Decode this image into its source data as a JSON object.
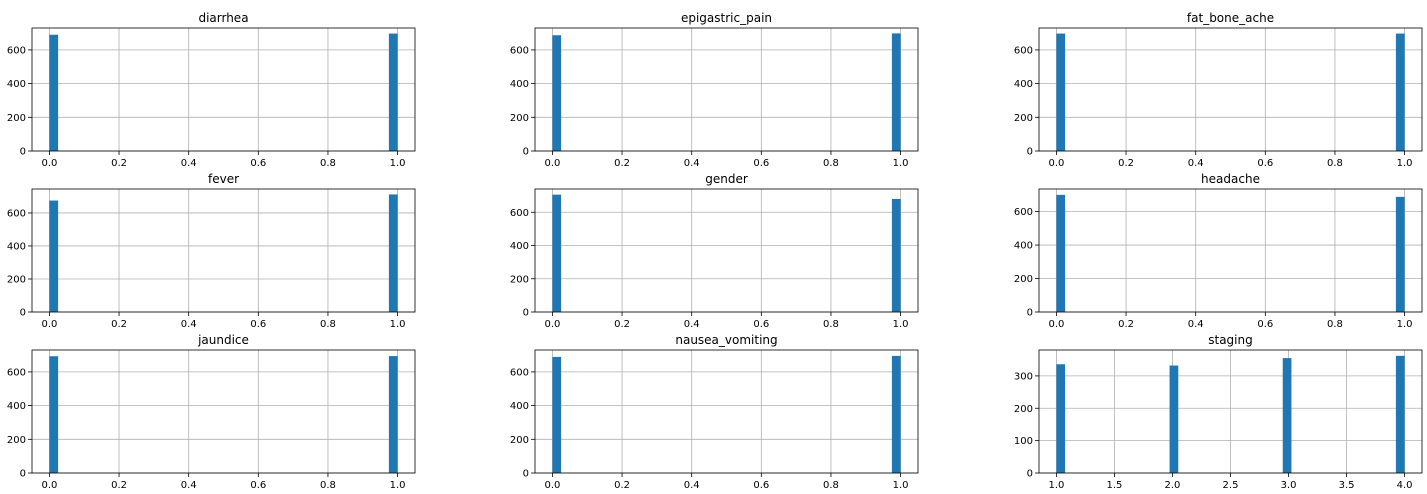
{
  "chart_data": [
    {
      "type": "bar",
      "title": "diarrhea",
      "xlabel": "",
      "ylabel": "",
      "xlim": [
        -0.05,
        1.05
      ],
      "ylim": [
        0,
        730
      ],
      "xticks": [
        0.0,
        0.2,
        0.4,
        0.6,
        0.8,
        1.0
      ],
      "xtick_labels": [
        "0.0",
        "0.2",
        "0.4",
        "0.6",
        "0.8",
        "1.0"
      ],
      "yticks": [
        0,
        200,
        400,
        600
      ],
      "ytick_labels": [
        "0",
        "200",
        "400",
        "600"
      ],
      "grid": true,
      "bins": [
        {
          "x0": 0.0,
          "x1": 0.025,
          "count": 690
        },
        {
          "x0": 0.975,
          "x1": 1.0,
          "count": 697
        }
      ]
    },
    {
      "type": "bar",
      "title": "epigastric_pain",
      "xlabel": "",
      "ylabel": "",
      "xlim": [
        -0.05,
        1.05
      ],
      "ylim": [
        0,
        730
      ],
      "xticks": [
        0.0,
        0.2,
        0.4,
        0.6,
        0.8,
        1.0
      ],
      "xtick_labels": [
        "0.0",
        "0.2",
        "0.4",
        "0.6",
        "0.8",
        "1.0"
      ],
      "yticks": [
        0,
        200,
        400,
        600
      ],
      "ytick_labels": [
        "0",
        "200",
        "400",
        "600"
      ],
      "grid": true,
      "bins": [
        {
          "x0": 0.0,
          "x1": 0.025,
          "count": 687
        },
        {
          "x0": 0.975,
          "x1": 1.0,
          "count": 698
        }
      ]
    },
    {
      "type": "bar",
      "title": "fat_bone_ache",
      "xlabel": "",
      "ylabel": "",
      "xlim": [
        -0.05,
        1.05
      ],
      "ylim": [
        0,
        730
      ],
      "xticks": [
        0.0,
        0.2,
        0.4,
        0.6,
        0.8,
        1.0
      ],
      "xtick_labels": [
        "0.0",
        "0.2",
        "0.4",
        "0.6",
        "0.8",
        "1.0"
      ],
      "yticks": [
        0,
        200,
        400,
        600
      ],
      "ytick_labels": [
        "0",
        "200",
        "400",
        "600"
      ],
      "grid": true,
      "bins": [
        {
          "x0": 0.0,
          "x1": 0.025,
          "count": 697
        },
        {
          "x0": 0.975,
          "x1": 1.0,
          "count": 697
        }
      ]
    },
    {
      "type": "bar",
      "title": "fever",
      "xlabel": "",
      "ylabel": "",
      "xlim": [
        -0.05,
        1.05
      ],
      "ylim": [
        0,
        745
      ],
      "xticks": [
        0.0,
        0.2,
        0.4,
        0.6,
        0.8,
        1.0
      ],
      "xtick_labels": [
        "0.0",
        "0.2",
        "0.4",
        "0.6",
        "0.8",
        "1.0"
      ],
      "yticks": [
        0,
        200,
        400,
        600
      ],
      "ytick_labels": [
        "0",
        "200",
        "400",
        "600"
      ],
      "grid": true,
      "bins": [
        {
          "x0": 0.0,
          "x1": 0.025,
          "count": 675
        },
        {
          "x0": 0.975,
          "x1": 1.0,
          "count": 712
        }
      ]
    },
    {
      "type": "bar",
      "title": "gender",
      "xlabel": "",
      "ylabel": "",
      "xlim": [
        -0.05,
        1.05
      ],
      "ylim": [
        0,
        740
      ],
      "xticks": [
        0.0,
        0.2,
        0.4,
        0.6,
        0.8,
        1.0
      ],
      "xtick_labels": [
        "0.0",
        "0.2",
        "0.4",
        "0.6",
        "0.8",
        "1.0"
      ],
      "yticks": [
        0,
        200,
        400,
        600
      ],
      "ytick_labels": [
        "0",
        "200",
        "400",
        "600"
      ],
      "grid": true,
      "bins": [
        {
          "x0": 0.0,
          "x1": 0.025,
          "count": 706
        },
        {
          "x0": 0.975,
          "x1": 1.0,
          "count": 680
        }
      ]
    },
    {
      "type": "bar",
      "title": "headache",
      "xlabel": "",
      "ylabel": "",
      "xlim": [
        -0.05,
        1.05
      ],
      "ylim": [
        0,
        735
      ],
      "xticks": [
        0.0,
        0.2,
        0.4,
        0.6,
        0.8,
        1.0
      ],
      "xtick_labels": [
        "0.0",
        "0.2",
        "0.4",
        "0.6",
        "0.8",
        "1.0"
      ],
      "yticks": [
        0,
        200,
        400,
        600
      ],
      "ytick_labels": [
        "0",
        "200",
        "400",
        "600"
      ],
      "grid": true,
      "bins": [
        {
          "x0": 0.0,
          "x1": 0.025,
          "count": 700
        },
        {
          "x0": 0.975,
          "x1": 1.0,
          "count": 688
        }
      ]
    },
    {
      "type": "bar",
      "title": "jaundice",
      "xlabel": "",
      "ylabel": "",
      "xlim": [
        -0.05,
        1.05
      ],
      "ylim": [
        0,
        730
      ],
      "xticks": [
        0.0,
        0.2,
        0.4,
        0.6,
        0.8,
        1.0
      ],
      "xtick_labels": [
        "0.0",
        "0.2",
        "0.4",
        "0.6",
        "0.8",
        "1.0"
      ],
      "yticks": [
        0,
        200,
        400,
        600
      ],
      "ytick_labels": [
        "0",
        "200",
        "400",
        "600"
      ],
      "grid": true,
      "bins": [
        {
          "x0": 0.0,
          "x1": 0.025,
          "count": 693
        },
        {
          "x0": 0.975,
          "x1": 1.0,
          "count": 694
        }
      ]
    },
    {
      "type": "bar",
      "title": "nausea_vomiting",
      "xlabel": "",
      "ylabel": "",
      "xlim": [
        -0.05,
        1.05
      ],
      "ylim": [
        0,
        730
      ],
      "xticks": [
        0.0,
        0.2,
        0.4,
        0.6,
        0.8,
        1.0
      ],
      "xtick_labels": [
        "0.0",
        "0.2",
        "0.4",
        "0.6",
        "0.8",
        "1.0"
      ],
      "yticks": [
        0,
        200,
        400,
        600
      ],
      "ytick_labels": [
        "0",
        "200",
        "400",
        "600"
      ],
      "grid": true,
      "bins": [
        {
          "x0": 0.0,
          "x1": 0.025,
          "count": 689
        },
        {
          "x0": 0.975,
          "x1": 1.0,
          "count": 695
        }
      ]
    },
    {
      "type": "bar",
      "title": "staging",
      "xlabel": "",
      "ylabel": "",
      "xlim": [
        0.85,
        4.15
      ],
      "ylim": [
        0,
        380
      ],
      "xticks": [
        1.0,
        1.5,
        2.0,
        2.5,
        3.0,
        3.5,
        4.0
      ],
      "xtick_labels": [
        "1.0",
        "1.5",
        "2.0",
        "2.5",
        "3.0",
        "3.5",
        "4.0"
      ],
      "yticks": [
        0,
        100,
        200,
        300
      ],
      "ytick_labels": [
        "0",
        "100",
        "200",
        "300"
      ],
      "grid": true,
      "bins": [
        {
          "x0": 1.0,
          "x1": 1.075,
          "count": 336
        },
        {
          "x0": 1.975,
          "x1": 2.05,
          "count": 332
        },
        {
          "x0": 2.95,
          "x1": 3.025,
          "count": 355
        },
        {
          "x0": 3.925,
          "x1": 4.0,
          "count": 362
        }
      ]
    }
  ],
  "colors": {
    "bar": "#1f77b4",
    "grid": "#b0b0b0",
    "axis": "#000000"
  }
}
